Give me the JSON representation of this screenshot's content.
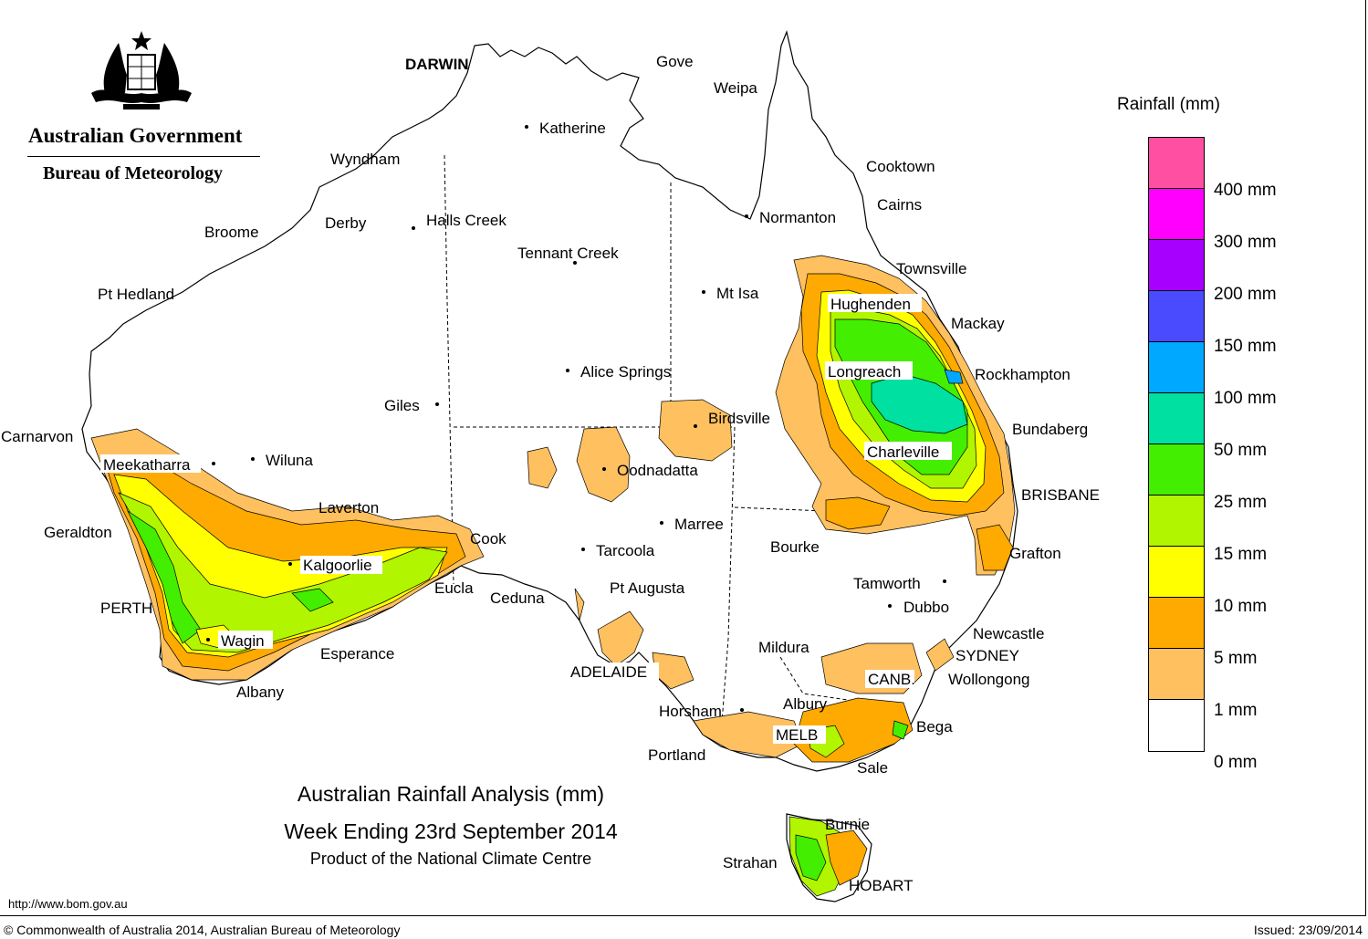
{
  "header": {
    "government": "Australian Government",
    "bureau": "Bureau of Meteorology"
  },
  "map": {
    "title": "Australian Rainfall Analysis (mm)",
    "period": "Week Ending 23rd September 2014",
    "product": "Product of the National Climate Centre"
  },
  "legend": {
    "title": "Rainfall (mm)",
    "bins": [
      {
        "color": "#ff4fa2"
      },
      {
        "color": "#ff00ff"
      },
      {
        "color": "#a800ff"
      },
      {
        "color": "#4a4aff"
      },
      {
        "color": "#00a8ff"
      },
      {
        "color": "#00e0a0"
      },
      {
        "color": "#44ee00"
      },
      {
        "color": "#b2f500"
      },
      {
        "color": "#ffff00"
      },
      {
        "color": "#ffaa00"
      },
      {
        "color": "#ffc060"
      },
      {
        "color": "#ffffff"
      }
    ],
    "labels": [
      "400 mm",
      "300 mm",
      "200 mm",
      "150 mm",
      "100 mm",
      "50 mm",
      "25 mm",
      "15 mm",
      "10 mm",
      "5 mm",
      "1 mm",
      "0 mm"
    ]
  },
  "towns": {
    "darwin": "DARWIN",
    "gove": "Gove",
    "weipa": "Weipa",
    "katherine": "Katherine",
    "wyndham": "Wyndham",
    "cooktown": "Cooktown",
    "cairns": "Cairns",
    "normanton": "Normanton",
    "derby": "Derby",
    "halls_creek": "Halls Creek",
    "broome": "Broome",
    "tennant_creek": "Tennant Creek",
    "townsville": "Townsville",
    "pt_hedland": "Pt Hedland",
    "mt_isa": "Mt Isa",
    "hughenden": "Hughenden",
    "mackay": "Mackay",
    "alice_springs": "Alice Springs",
    "longreach": "Longreach",
    "rockhampton": "Rockhampton",
    "giles": "Giles",
    "birdsville": "Birdsville",
    "bundaberg": "Bundaberg",
    "carnarvon": "Carnarvon",
    "meekatharra": "Meekatharra",
    "wiluna": "Wiluna",
    "charleville": "Charleville",
    "oodnadatta": "Oodnadatta",
    "brisbane": "BRISBANE",
    "laverton": "Laverton",
    "marree": "Marree",
    "geraldton": "Geraldton",
    "cook": "Cook",
    "bourke": "Bourke",
    "grafton": "Grafton",
    "tarcoola": "Tarcoola",
    "kalgoorlie": "Kalgoorlie",
    "tamworth": "Tamworth",
    "eucla": "Eucla",
    "pt_augusta": "Pt Augusta",
    "ceduna": "Ceduna",
    "dubbo": "Dubbo",
    "perth": "PERTH",
    "newcastle": "Newcastle",
    "wagin": "Wagin",
    "mildura": "Mildura",
    "esperance": "Esperance",
    "sydney": "SYDNEY",
    "adelaide": "ADELAIDE",
    "canberra": "CANB.",
    "wollongong": "Wollongong",
    "albany": "Albany",
    "albury": "Albury",
    "horsham": "Horsham",
    "melbourne": "MELB",
    "bega": "Bega",
    "portland": "Portland",
    "sale": "Sale",
    "burnie": "Burnie",
    "strahan": "Strahan",
    "hobart": "HOBART"
  },
  "footer": {
    "website": "http://www.bom.gov.au",
    "copyright": "© Commonwealth of Australia 2014, Australian Bureau of Meteorology",
    "issued": "Issued: 23/09/2014"
  }
}
